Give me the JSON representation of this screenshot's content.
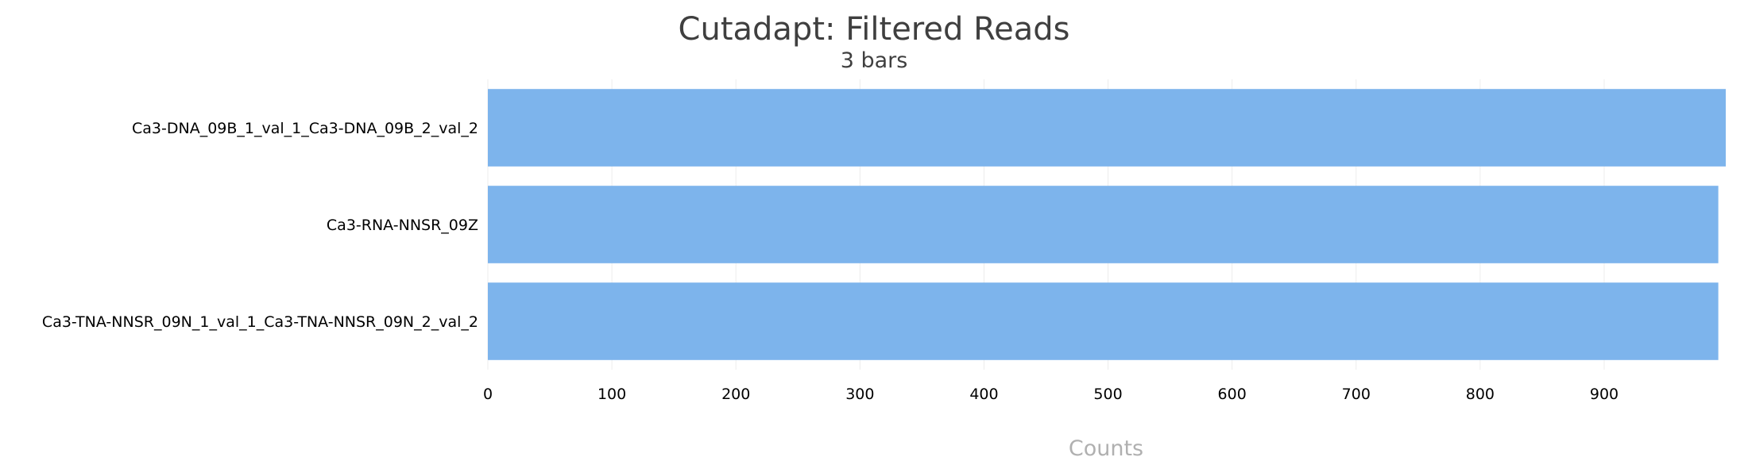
{
  "chart_data": {
    "type": "bar",
    "orientation": "horizontal",
    "title": "Cutadapt: Filtered Reads",
    "subtitle": "3 bars",
    "xlabel": "Counts",
    "ylabel": "",
    "categories": [
      "Ca3-DNA_09B_1_val_1_Ca3-DNA_09B_2_val_2",
      "Ca3-RNA-NNSR_09Z",
      "Ca3-TNA-NNSR_09N_1_val_1_Ca3-TNA-NNSR_09N_2_val_2"
    ],
    "values": [
      998,
      992,
      992
    ],
    "xlim": [
      0,
      998
    ],
    "xticks": [
      0,
      100,
      200,
      300,
      400,
      500,
      600,
      700,
      800,
      900
    ],
    "grid": true,
    "legend": "none",
    "bar_color": "#7db4ec"
  }
}
